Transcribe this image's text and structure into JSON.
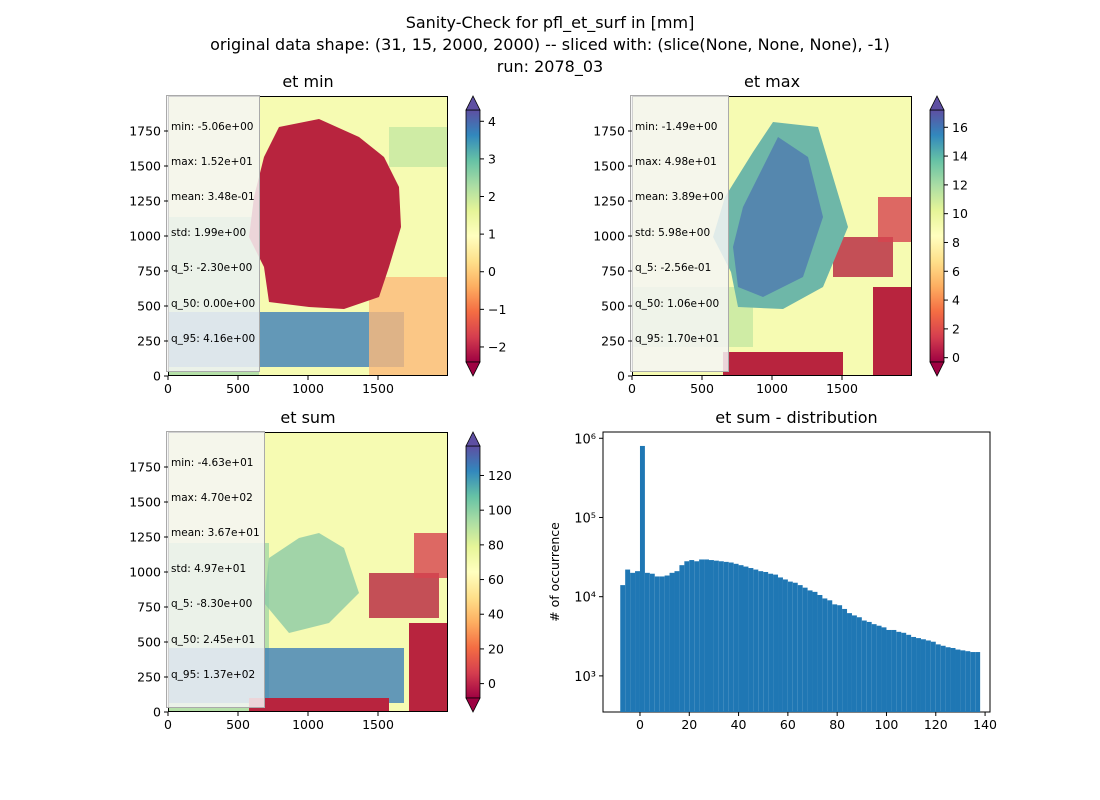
{
  "suptitle": {
    "line1": "Sanity-Check for pfl_et_surf in [mm]",
    "line2": "original data shape: (31, 15, 2000, 2000) -- sliced with: (slice(None, None, None), -1)",
    "line3": "run: 2078_03"
  },
  "panels": {
    "et_min": {
      "title": "et min",
      "stats": [
        "min: -5.06e+00",
        "max: 1.52e+01",
        "mean: 3.48e-01",
        "std: 1.99e+00",
        "q_5: -2.30e+00",
        "q_50: 0.00e+00",
        "q_95: 4.16e+00"
      ],
      "x_ticks": [
        "0",
        "500",
        "1000",
        "1500"
      ],
      "y_ticks": [
        "0",
        "250",
        "500",
        "750",
        "1000",
        "1250",
        "1500",
        "1750"
      ],
      "colorbar_ticks": [
        "4",
        "3",
        "2",
        "1",
        "0",
        "−1",
        "−2"
      ],
      "colorbar_range": [
        -2.4,
        4.3
      ],
      "colormap": "Spectral"
    },
    "et_max": {
      "title": "et max",
      "stats": [
        "min: -1.49e+00",
        "max: 4.98e+01",
        "mean: 3.89e+00",
        "std: 5.98e+00",
        "q_5: -2.56e-01",
        "q_50: 1.06e+00",
        "q_95: 1.70e+01"
      ],
      "x_ticks": [
        "0",
        "500",
        "1000",
        "1500"
      ],
      "y_ticks": [
        "0",
        "250",
        "500",
        "750",
        "1000",
        "1250",
        "1500",
        "1750"
      ],
      "colorbar_ticks": [
        "16",
        "14",
        "12",
        "10",
        "8",
        "6",
        "4",
        "2",
        "0"
      ],
      "colorbar_range": [
        -0.3,
        17.2
      ],
      "colormap": "Spectral"
    },
    "et_sum": {
      "title": "et sum",
      "stats": [
        "min: -4.63e+01",
        "max: 4.70e+02",
        "mean: 3.67e+01",
        "std: 4.97e+01",
        "q_5: -8.30e+00",
        "q_50: 2.45e+01",
        "q_95: 1.37e+02"
      ],
      "x_ticks": [
        "0",
        "500",
        "1000",
        "1500"
      ],
      "y_ticks": [
        "0",
        "250",
        "500",
        "750",
        "1000",
        "1250",
        "1500",
        "1750"
      ],
      "colorbar_ticks": [
        "120",
        "100",
        "80",
        "60",
        "40",
        "20",
        "0"
      ],
      "colorbar_range": [
        -8.3,
        137
      ],
      "colormap": "Spectral"
    }
  },
  "colors": {
    "hist_bar": "#1f77b4",
    "spectral_low": "#9e0142",
    "spectral_mid": "#ffffbf",
    "spectral_high": "#5e4fa2"
  },
  "chart_data": {
    "type": "bar",
    "title": "et sum - distribution",
    "xlabel": "",
    "ylabel": "# of occurrence",
    "yscale": "log",
    "xlim": [
      -15,
      142
    ],
    "ylim": [
      350,
      1200000
    ],
    "x_ticks": [
      "0",
      "20",
      "40",
      "60",
      "80",
      "100",
      "120",
      "140"
    ],
    "y_ticks": [
      "10³",
      "10⁴",
      "10⁵",
      "10⁶"
    ],
    "series": [
      {
        "x": [
          -8,
          -6,
          -4,
          -2,
          0,
          2,
          4,
          6,
          8,
          10,
          12,
          14,
          16,
          18,
          20,
          22,
          24,
          26,
          28,
          30,
          32,
          34,
          36,
          38,
          40,
          42,
          44,
          46,
          48,
          50,
          52,
          54,
          56,
          58,
          60,
          62,
          64,
          66,
          68,
          70,
          72,
          74,
          76,
          78,
          80,
          82,
          84,
          86,
          88,
          90,
          92,
          94,
          96,
          98,
          100,
          102,
          104,
          106,
          108,
          110,
          112,
          114,
          116,
          118,
          120,
          122,
          124,
          126,
          128,
          130,
          132,
          134,
          136
        ],
        "values": [
          14000,
          22000,
          20000,
          21000,
          800000,
          20000,
          19500,
          18000,
          18000,
          18500,
          20000,
          21000,
          25000,
          28000,
          29000,
          28000,
          29500,
          29500,
          29000,
          28500,
          28000,
          27500,
          27000,
          26000,
          25000,
          24000,
          23000,
          22000,
          21000,
          20500,
          19500,
          19000,
          17500,
          16500,
          15500,
          15000,
          14000,
          13000,
          12000,
          11500,
          10500,
          9500,
          9000,
          8000,
          7800,
          7000,
          6200,
          5800,
          5500,
          5000,
          4800,
          4500,
          4300,
          4100,
          3800,
          3800,
          3600,
          3500,
          3300,
          3100,
          3000,
          2900,
          2800,
          2700,
          2500,
          2400,
          2300,
          2250,
          2150,
          2100,
          2050,
          2000,
          2000
        ]
      }
    ]
  }
}
